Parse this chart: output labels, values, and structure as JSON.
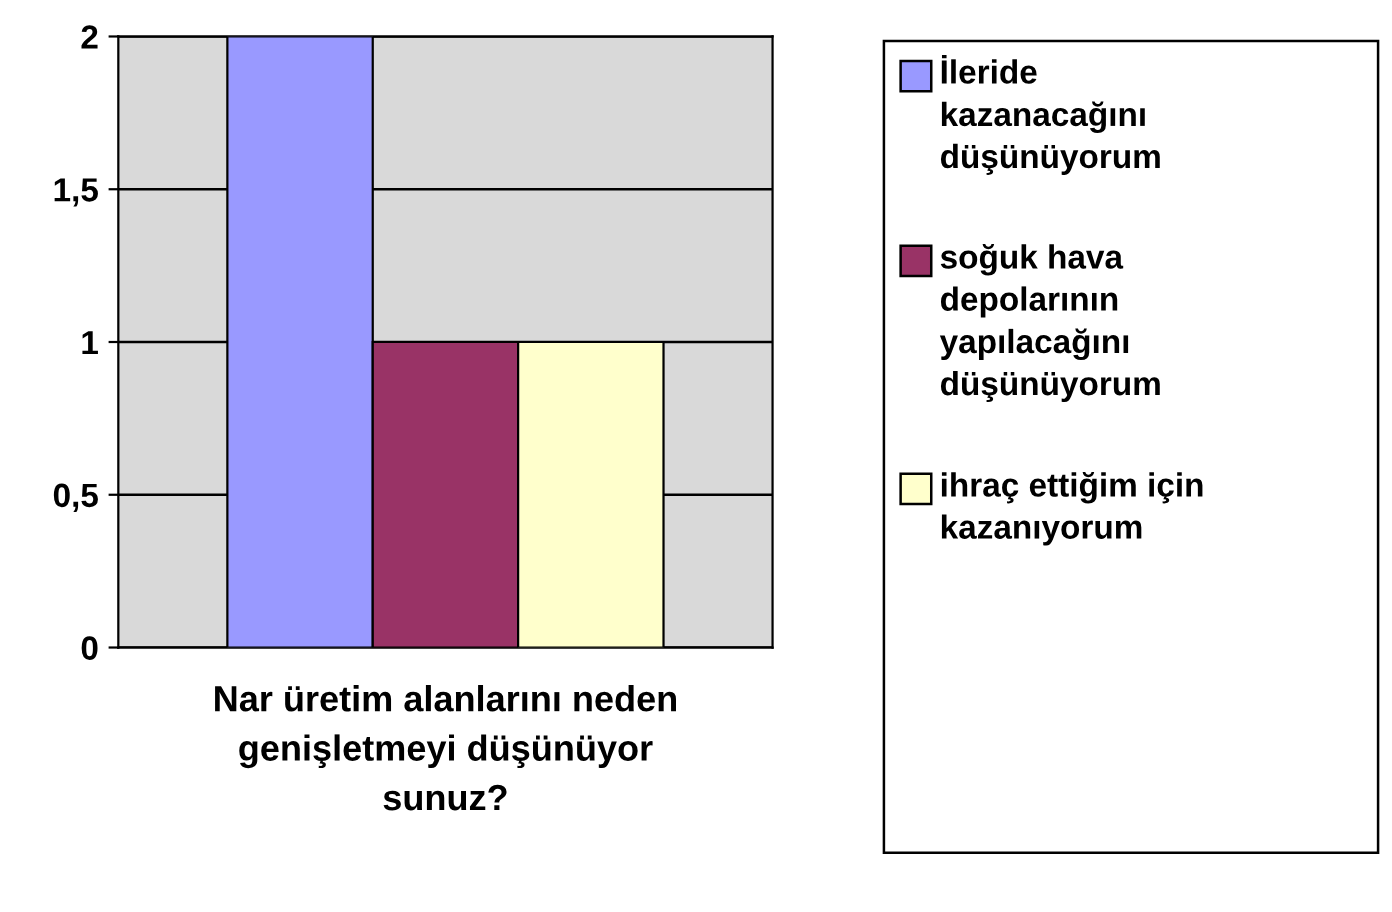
{
  "chart_data": {
    "type": "bar",
    "xlabel": "Nar üretim alanlarını neden\ngenişletmeyi düşünüyor\nsunuz?",
    "categories": [
      null
    ],
    "series": [
      {
        "name": "İleride\nkazanacağını\ndüşünüyorum",
        "color": "#9999ff",
        "values": [
          2
        ]
      },
      {
        "name": "soğuk hava\ndepolarının\nyapılacağını\ndüşünüyorum",
        "color": "#993366",
        "values": [
          1
        ]
      },
      {
        "name": "ihraç ettiğim için\nkazanıyorum",
        "color": "#ffffcc",
        "values": [
          1
        ]
      }
    ],
    "ylim": [
      0,
      2
    ],
    "yticks": [
      0,
      {
        "value": 0.5,
        "label": "0,5"
      },
      1,
      {
        "value": 1.5,
        "label": "1,5"
      },
      2
    ],
    "grid": "y",
    "legend": "right"
  }
}
